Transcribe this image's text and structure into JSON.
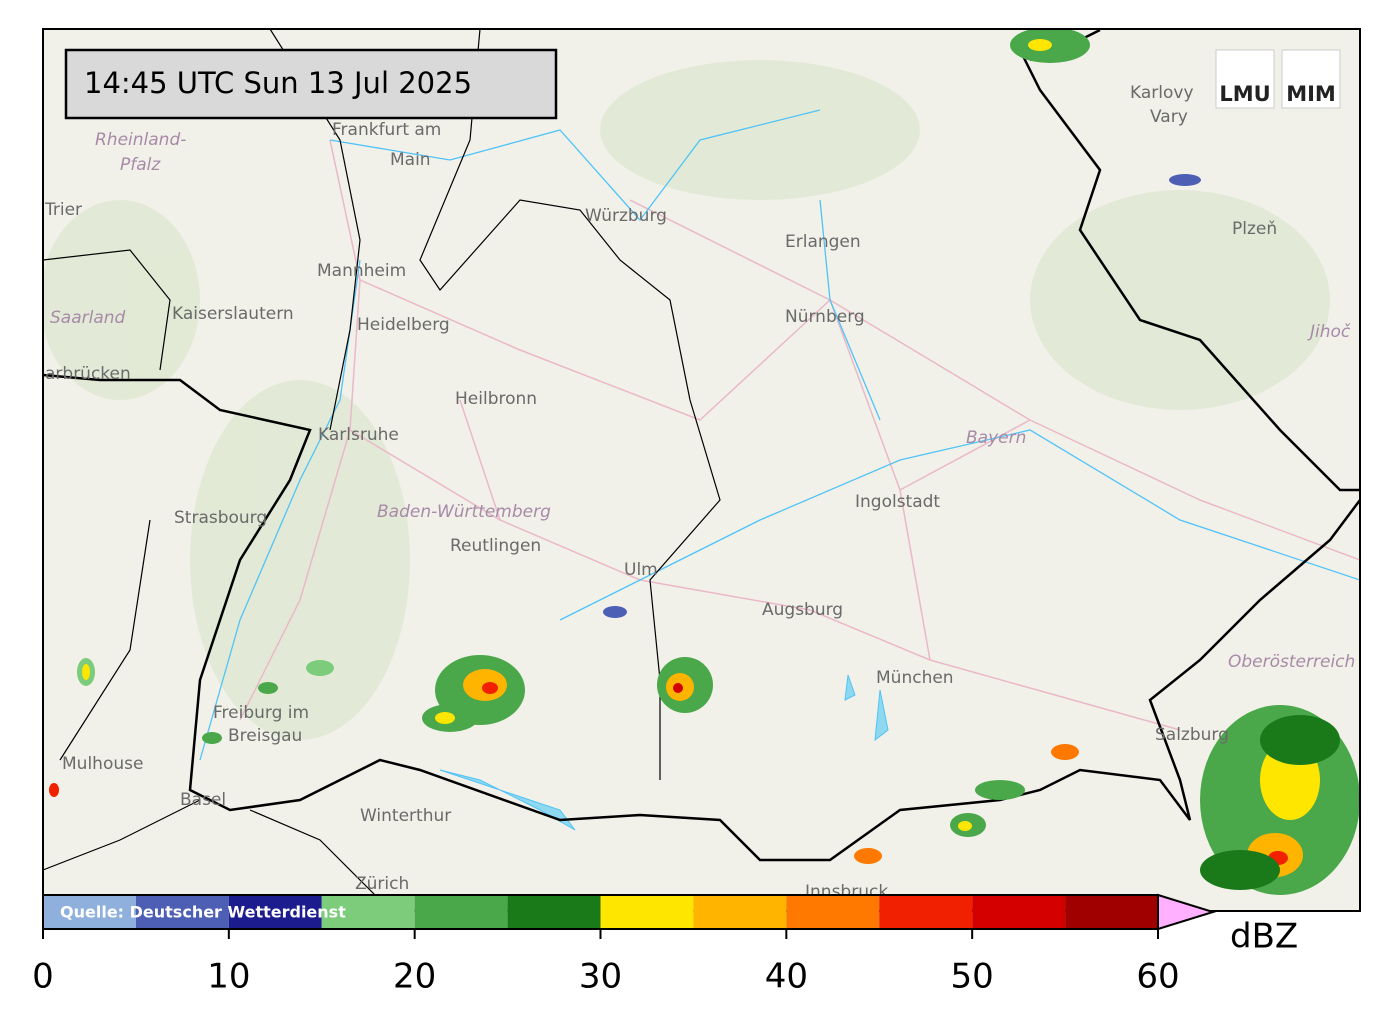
{
  "header": {
    "timestamp": "14:45 UTC  Sun 13 Jul 2025",
    "logos": [
      "LMU",
      "MIM"
    ]
  },
  "map": {
    "places": [
      "Frankfurt am",
      "Main",
      "Rheinland-",
      "Pfalz",
      "Trier",
      "Mannheim",
      "Kaiserslautern",
      "Heidelberg",
      "Saarland",
      "arbrücken",
      "Würzburg",
      "Erlangen",
      "Nürnberg",
      "Heilbronn",
      "Karlsruhe",
      "Strasbourg",
      "Baden-Württemberg",
      "Reutlingen",
      "Ulm",
      "Ingolstadt",
      "Bayern",
      "Augsburg",
      "München",
      "Freiburg im",
      "Breisgau",
      "Mulhouse",
      "Basel",
      "Winterthur",
      "Zürich",
      "Innsbruck",
      "Salzburg",
      "Oberösterreich",
      "Karlovy",
      "Vary",
      "Plzeň",
      "Jihoč"
    ],
    "regions": [
      "Rheinland-",
      "Pfalz",
      "Saarland",
      "Baden-Württemberg",
      "Bayern",
      "Oberösterreich",
      "Jihoč"
    ]
  },
  "colorbar": {
    "source": "Quelle: Deutscher Wetterdienst",
    "unit": "dBZ",
    "bounds": [
      0,
      5,
      10,
      15,
      20,
      25,
      30,
      35,
      40,
      45,
      50,
      55,
      60
    ],
    "colors": [
      "#8fb0dc",
      "#4d5fb4",
      "#1c1c8e",
      "#7ccc7c",
      "#4aa84a",
      "#1a7a1a",
      "#ffe600",
      "#ffb400",
      "#ff7800",
      "#f02000",
      "#d40000",
      "#a00000"
    ],
    "extend_color": "#ffb0ff",
    "ticks": [
      0,
      10,
      20,
      30,
      40,
      50,
      60
    ]
  }
}
